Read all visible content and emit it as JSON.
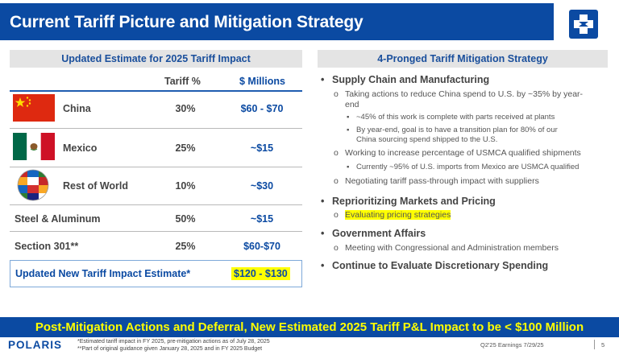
{
  "header": {
    "title": "Current Tariff Picture and Mitigation Strategy",
    "logo_icon": "polaris-star-icon"
  },
  "left_panel": {
    "heading": "Updated Estimate for 2025 Tariff Impact",
    "col_pct": "Tariff %",
    "col_mil": "$ Millions",
    "rows": [
      {
        "label": "China",
        "pct": "30%",
        "mil": "$60 - $70",
        "flag": "china-flag-icon"
      },
      {
        "label": "Mexico",
        "pct": "25%",
        "mil": "~$15",
        "flag": "mexico-flag-icon"
      },
      {
        "label": "Rest of World",
        "pct": "10%",
        "mil": "~$30",
        "flag": "world-flags-globe-icon"
      },
      {
        "label": "Steel & Aluminum",
        "pct": "50%",
        "mil": "~$15"
      },
      {
        "label": "Section 301**",
        "pct": "25%",
        "mil": "$60-$70"
      }
    ],
    "total_label": "Updated New Tariff Impact Estimate*",
    "total_value": "$120 - $130"
  },
  "right_panel": {
    "heading": "4-Pronged Tariff Mitigation Strategy",
    "sections": [
      {
        "title": "Supply Chain and Manufacturing",
        "items": [
          {
            "text_l1": "Taking actions to reduce China spend to U.S. by ~35% by year-",
            "text_l2": "end",
            "sub": [
              {
                "l1": "~45% of this work is complete with parts received at plants"
              },
              {
                "l1": "By year-end, goal is to have a transition plan for 80% of our",
                "l2": "China sourcing spend shipped to the U.S."
              }
            ]
          },
          {
            "text_l1": "Working to increase percentage of USMCA qualified shipments",
            "sub": [
              {
                "l1": "Currently ~95% of U.S. imports from Mexico are USMCA qualified"
              }
            ]
          },
          {
            "text_l1": "Negotiating tariff pass-through impact with suppliers"
          }
        ]
      },
      {
        "title": "Reprioritizing Markets and Pricing",
        "items": [
          {
            "text_l1": "Evaluating pricing strategies"
          }
        ]
      },
      {
        "title": "Government Affairs",
        "items": [
          {
            "text_l1": "Meeting with Congressional and Administration members"
          }
        ]
      },
      {
        "title": "Continue to Evaluate Discretionary Spending"
      }
    ]
  },
  "banner": "Post-Mitigation Actions and Deferral, New Estimated 2025 Tariff P&L Impact to be < $100 Million",
  "footer": {
    "logo": "POLARIS",
    "note1": "*Estimated tariff impact in FY 2025, pre-mitigation actions as of July 28, 2025",
    "note2": "**Part of original guidance given January 28, 2025 and in FY 2025 Budget",
    "right": "Q2'25 Earnings 7/29/25",
    "page": "5"
  },
  "colors": {
    "brand_blue": "#0b4aa2",
    "highlight": "#ffff00"
  }
}
